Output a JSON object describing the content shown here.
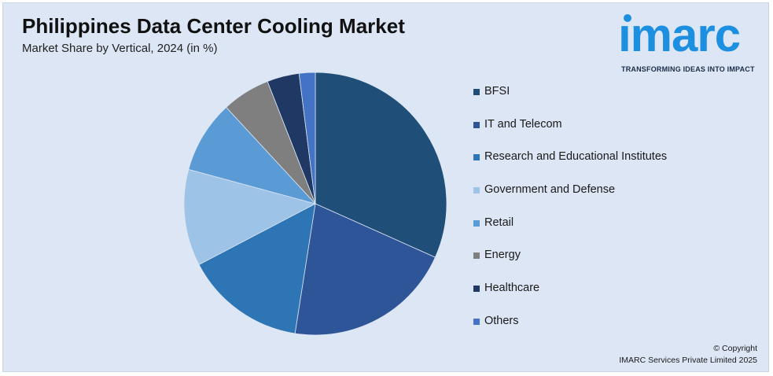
{
  "header": {
    "title": "Philippines Data Center Cooling Market",
    "subtitle": "Market Share by Vertical, 2024 (in %)"
  },
  "logo": {
    "word": "ımarc",
    "tagline": "TRANSFORMING IDEAS INTO IMPACT",
    "color": "#1d8fe0"
  },
  "chart_data": {
    "type": "pie",
    "title": "Philippines Data Center Cooling Market",
    "subtitle": "Market Share by Vertical, 2024 (in %)",
    "legend_position": "right",
    "slices": [
      {
        "label": "BFSI",
        "value": 32,
        "color": "#1f4e79"
      },
      {
        "label": "IT and Telecom",
        "value": 21,
        "color": "#2e5597"
      },
      {
        "label": "Research and Educational Institutes",
        "value": 15,
        "color": "#2e75b6"
      },
      {
        "label": "Government and Defense",
        "value": 12,
        "color": "#9dc3e6"
      },
      {
        "label": "Retail",
        "value": 9,
        "color": "#5b9bd5"
      },
      {
        "label": "Energy",
        "value": 6,
        "color": "#7f7f7f"
      },
      {
        "label": "Healthcare",
        "value": 4,
        "color": "#203864"
      },
      {
        "label": "Others",
        "value": 2,
        "color": "#4472c4"
      }
    ]
  },
  "footer": {
    "copyright_line1": "© Copyright",
    "copyright_line2": "IMARC Services Private Limited 2025"
  }
}
